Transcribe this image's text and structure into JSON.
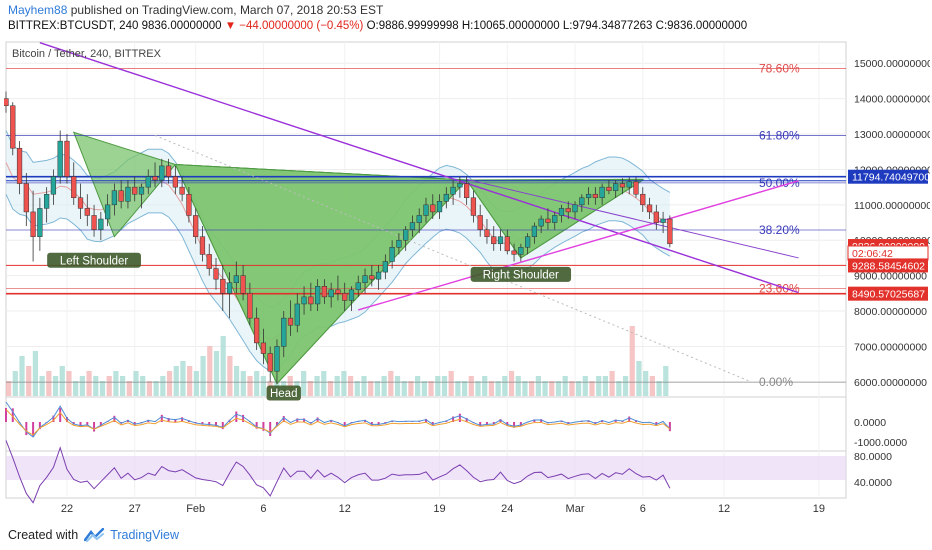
{
  "header": {
    "author": "Mayhem88",
    "published_text": "published on TradingView.com, March 07, 2018 20:53 EST",
    "symbol": "BITTREX:BTCUSDT, 240",
    "price": "9836.00000000",
    "change": "▼ −44.00000000 (−0.45%)",
    "open": "O:9886.99999998",
    "high": "H:10065.00000000",
    "low": "L:9794.34877263",
    "close": "C:9836.00000000"
  },
  "footer": {
    "created_with": "Created with",
    "brand": "TradingView"
  },
  "colors": {
    "candle_up": "#26a69a",
    "candle_down": "#ef5350",
    "fib_red": "#e04848",
    "fib_blue": "#3a3ab8",
    "purple_line": "#9b30d9",
    "magenta_line": "#e040e0",
    "pattern_fill": "#7cc46e",
    "bollinger_fill": "#d8ecf4",
    "badge_blue": "#1e3bbf",
    "badge_red": "#e2302a",
    "rsi_fill": "#ead8f6"
  },
  "chart_data": {
    "type": "candlestick",
    "title": "Bitcoin / Tether, 240, BITTREX",
    "y_axis": {
      "min": 5600,
      "max": 15600,
      "ticks": [
        "15000.00000000",
        "14000.00000000",
        "13000.00000000",
        "12000.00000000",
        "11000.00000000",
        "10000.00000000",
        "9000.00000000",
        "8000.00000000",
        "7000.00000000",
        "6000.00000000"
      ],
      "tick_values": [
        15000,
        14000,
        13000,
        12000,
        11000,
        10000,
        9000,
        8000,
        7000,
        6000
      ]
    },
    "x_axis": {
      "min": 0,
      "max": 62,
      "labels": [
        "22",
        "27",
        "Feb",
        "6",
        "12",
        "19",
        "24",
        "Mar",
        "6",
        "12",
        "19"
      ],
      "label_days": [
        4.5,
        9.5,
        14,
        19,
        25,
        32,
        37,
        42,
        47,
        53,
        60
      ]
    },
    "price_badges": [
      {
        "label": "11794.74049700",
        "value": 11794.74,
        "color": "#1e3bbf"
      },
      {
        "label": "9836.00000000",
        "value": 9836,
        "color": "#e2302a"
      },
      {
        "label": "02:06:42",
        "value": 9640,
        "color": "#ffffff"
      },
      {
        "label": "9288.58454602",
        "value": 9288.58,
        "color": "#e2302a"
      },
      {
        "label": "8490.57025687",
        "value": 8490.57,
        "color": "#e2302a"
      }
    ],
    "fib_levels": [
      {
        "label": "78.60%",
        "value": 14850,
        "color": "#e04848"
      },
      {
        "label": "61.80%",
        "value": 12960,
        "color": "#3a3ab8"
      },
      {
        "label": "50.00%",
        "value": 11620,
        "color": "#3a3ab8"
      },
      {
        "label": "38.20%",
        "value": 10290,
        "color": "#3a3ab8"
      },
      {
        "label": "23.60%",
        "value": 8640,
        "color": "#e04848"
      },
      {
        "label": "0.00%",
        "value": 5990,
        "color": "#888888"
      }
    ],
    "horizontal_lines": [
      {
        "value": 11794.74,
        "color": "#1e3bbf",
        "width": 1.6
      },
      {
        "value": 11680,
        "color": "#1e3bbf",
        "width": 1
      },
      {
        "value": 9288.58,
        "color": "#e2302a",
        "width": 1
      },
      {
        "value": 8490.57,
        "color": "#e2302a",
        "width": 1.6
      }
    ],
    "trend_lines": [
      {
        "name": "purple",
        "x": [
          2.5,
          58.5
        ],
        "y": [
          15580,
          8520
        ],
        "color": "#9b30d9"
      },
      {
        "name": "neckline-lower",
        "x": [
          26,
          58.5
        ],
        "y": [
          8030,
          11680
        ],
        "color": "#e040e0"
      },
      {
        "name": "mid-violet",
        "x": [
          34,
          58.5
        ],
        "y": [
          11720,
          9500
        ],
        "color": "#8844cc"
      },
      {
        "name": "dotted-trend",
        "x": [
          11,
          55
        ],
        "y": [
          12960,
          6000
        ],
        "color": "#bbbbbb"
      }
    ],
    "pattern_annotations": [
      {
        "label": "Left Shoulder",
        "day": 6.5,
        "value": 9420
      },
      {
        "label": "Head",
        "day": 20.5,
        "value": 5670
      },
      {
        "label": "Right Shoulder",
        "day": 38,
        "value": 9020
      }
    ],
    "pattern_polygons": [
      [
        [
          5,
          13050
        ],
        [
          8,
          10100
        ],
        [
          12.5,
          12140
        ]
      ],
      [
        [
          12.5,
          12140
        ],
        [
          20,
          5950
        ],
        [
          34,
          11700
        ]
      ],
      [
        [
          34,
          11700
        ],
        [
          38,
          9500
        ],
        [
          47,
          11700
        ]
      ],
      [
        [
          12.5,
          12140
        ],
        [
          34,
          11700
        ]
      ],
      [
        [
          34,
          11700
        ],
        [
          47,
          11720
        ]
      ]
    ],
    "close_series": [
      {
        "d": 0,
        "o": 14000,
        "h": 14200,
        "l": 13600,
        "c": 13800
      },
      {
        "d": 0.5,
        "o": 13800,
        "h": 13900,
        "l": 12400,
        "c": 12600
      },
      {
        "d": 1,
        "o": 12600,
        "h": 12800,
        "l": 11300,
        "c": 11600
      },
      {
        "d": 1.5,
        "o": 11600,
        "h": 11900,
        "l": 10400,
        "c": 10800
      },
      {
        "d": 2,
        "o": 10800,
        "h": 11400,
        "l": 9400,
        "c": 10100
      },
      {
        "d": 2.5,
        "o": 10100,
        "h": 11200,
        "l": 9700,
        "c": 10900
      },
      {
        "d": 3,
        "o": 10900,
        "h": 11500,
        "l": 10500,
        "c": 11300
      },
      {
        "d": 3.5,
        "o": 11300,
        "h": 12000,
        "l": 11000,
        "c": 11800
      },
      {
        "d": 4,
        "o": 11800,
        "h": 13100,
        "l": 11600,
        "c": 12800
      },
      {
        "d": 4.5,
        "o": 12800,
        "h": 13000,
        "l": 11600,
        "c": 11800
      },
      {
        "d": 5,
        "o": 11800,
        "h": 12200,
        "l": 11000,
        "c": 11200
      },
      {
        "d": 5.5,
        "o": 11200,
        "h": 11600,
        "l": 10600,
        "c": 10900
      },
      {
        "d": 6,
        "o": 10900,
        "h": 11300,
        "l": 10400,
        "c": 10700
      },
      {
        "d": 6.5,
        "o": 10700,
        "h": 11000,
        "l": 10100,
        "c": 10300
      },
      {
        "d": 7,
        "o": 10300,
        "h": 10800,
        "l": 10000,
        "c": 10600
      },
      {
        "d": 7.5,
        "o": 10600,
        "h": 11300,
        "l": 10400,
        "c": 11000
      },
      {
        "d": 8,
        "o": 11000,
        "h": 11600,
        "l": 10700,
        "c": 11400
      },
      {
        "d": 8.5,
        "o": 11400,
        "h": 11700,
        "l": 10900,
        "c": 11100
      },
      {
        "d": 9,
        "o": 11100,
        "h": 11700,
        "l": 10900,
        "c": 11500
      },
      {
        "d": 9.5,
        "o": 11500,
        "h": 11800,
        "l": 11100,
        "c": 11300
      },
      {
        "d": 10,
        "o": 11300,
        "h": 11600,
        "l": 10900,
        "c": 11500
      },
      {
        "d": 10.5,
        "o": 11500,
        "h": 12000,
        "l": 11300,
        "c": 11800
      },
      {
        "d": 11,
        "o": 11800,
        "h": 12200,
        "l": 11500,
        "c": 11700
      },
      {
        "d": 11.5,
        "o": 11700,
        "h": 12300,
        "l": 11500,
        "c": 12100
      },
      {
        "d": 12,
        "o": 12100,
        "h": 12300,
        "l": 11600,
        "c": 11800
      },
      {
        "d": 12.5,
        "o": 11800,
        "h": 12100,
        "l": 11300,
        "c": 11500
      },
      {
        "d": 13,
        "o": 11500,
        "h": 11800,
        "l": 11100,
        "c": 11300
      },
      {
        "d": 13.5,
        "o": 11300,
        "h": 11500,
        "l": 10500,
        "c": 10700
      },
      {
        "d": 14,
        "o": 10700,
        "h": 10900,
        "l": 9900,
        "c": 10100
      },
      {
        "d": 14.5,
        "o": 10100,
        "h": 10400,
        "l": 9400,
        "c": 9600
      },
      {
        "d": 15,
        "o": 9600,
        "h": 9900,
        "l": 9000,
        "c": 9200
      },
      {
        "d": 15.5,
        "o": 9200,
        "h": 9500,
        "l": 8600,
        "c": 8900
      },
      {
        "d": 16,
        "o": 8900,
        "h": 9300,
        "l": 8000,
        "c": 8500
      },
      {
        "d": 16.5,
        "o": 8500,
        "h": 9100,
        "l": 7800,
        "c": 8800
      },
      {
        "d": 17,
        "o": 8800,
        "h": 9400,
        "l": 8500,
        "c": 9000
      },
      {
        "d": 17.5,
        "o": 9000,
        "h": 9300,
        "l": 8300,
        "c": 8500
      },
      {
        "d": 18,
        "o": 8500,
        "h": 8800,
        "l": 7600,
        "c": 7800
      },
      {
        "d": 18.5,
        "o": 7800,
        "h": 8100,
        "l": 6900,
        "c": 7100
      },
      {
        "d": 19,
        "o": 7100,
        "h": 7500,
        "l": 6500,
        "c": 6800
      },
      {
        "d": 19.5,
        "o": 6800,
        "h": 7000,
        "l": 6000,
        "c": 6300
      },
      {
        "d": 20,
        "o": 6300,
        "h": 7200,
        "l": 5950,
        "c": 7000
      },
      {
        "d": 20.5,
        "o": 7000,
        "h": 8000,
        "l": 6700,
        "c": 7800
      },
      {
        "d": 21,
        "o": 7800,
        "h": 8300,
        "l": 7300,
        "c": 7600
      },
      {
        "d": 21.5,
        "o": 7600,
        "h": 8500,
        "l": 7400,
        "c": 8200
      },
      {
        "d": 22,
        "o": 8200,
        "h": 8700,
        "l": 7900,
        "c": 8400
      },
      {
        "d": 22.5,
        "o": 8400,
        "h": 8800,
        "l": 8000,
        "c": 8200
      },
      {
        "d": 23,
        "o": 8200,
        "h": 8900,
        "l": 8000,
        "c": 8700
      },
      {
        "d": 23.5,
        "o": 8700,
        "h": 8900,
        "l": 8200,
        "c": 8400
      },
      {
        "d": 24,
        "o": 8400,
        "h": 8800,
        "l": 8100,
        "c": 8600
      },
      {
        "d": 24.5,
        "o": 8600,
        "h": 9000,
        "l": 8300,
        "c": 8500
      },
      {
        "d": 25,
        "o": 8500,
        "h": 8800,
        "l": 8000,
        "c": 8300
      },
      {
        "d": 25.5,
        "o": 8300,
        "h": 8700,
        "l": 8000,
        "c": 8600
      },
      {
        "d": 26,
        "o": 8600,
        "h": 9000,
        "l": 8400,
        "c": 8800
      },
      {
        "d": 26.5,
        "o": 8800,
        "h": 9200,
        "l": 8500,
        "c": 9000
      },
      {
        "d": 27,
        "o": 9000,
        "h": 9300,
        "l": 8700,
        "c": 8900
      },
      {
        "d": 27.5,
        "o": 8900,
        "h": 9300,
        "l": 8600,
        "c": 9100
      },
      {
        "d": 28,
        "o": 9100,
        "h": 9600,
        "l": 8900,
        "c": 9400
      },
      {
        "d": 28.5,
        "o": 9400,
        "h": 10000,
        "l": 9200,
        "c": 9800
      },
      {
        "d": 29,
        "o": 9800,
        "h": 10200,
        "l": 9600,
        "c": 10000
      },
      {
        "d": 29.5,
        "o": 10000,
        "h": 10400,
        "l": 9700,
        "c": 10300
      },
      {
        "d": 30,
        "o": 10300,
        "h": 10700,
        "l": 10100,
        "c": 10500
      },
      {
        "d": 30.5,
        "o": 10500,
        "h": 10900,
        "l": 10200,
        "c": 10700
      },
      {
        "d": 31,
        "o": 10700,
        "h": 11200,
        "l": 10500,
        "c": 11000
      },
      {
        "d": 31.5,
        "o": 11000,
        "h": 11300,
        "l": 10600,
        "c": 10800
      },
      {
        "d": 32,
        "o": 10800,
        "h": 11300,
        "l": 10600,
        "c": 11100
      },
      {
        "d": 32.5,
        "o": 11100,
        "h": 11500,
        "l": 10900,
        "c": 11300
      },
      {
        "d": 33,
        "o": 11300,
        "h": 11700,
        "l": 11000,
        "c": 11500
      },
      {
        "d": 33.5,
        "o": 11500,
        "h": 11800,
        "l": 11200,
        "c": 11600
      },
      {
        "d": 34,
        "o": 11600,
        "h": 11800,
        "l": 11000,
        "c": 11200
      },
      {
        "d": 34.5,
        "o": 11200,
        "h": 11400,
        "l": 10500,
        "c": 10700
      },
      {
        "d": 35,
        "o": 10700,
        "h": 11000,
        "l": 10100,
        "c": 10300
      },
      {
        "d": 35.5,
        "o": 10300,
        "h": 10600,
        "l": 9900,
        "c": 10100
      },
      {
        "d": 36,
        "o": 10100,
        "h": 10400,
        "l": 9700,
        "c": 9900
      },
      {
        "d": 36.5,
        "o": 9900,
        "h": 10300,
        "l": 9700,
        "c": 10100
      },
      {
        "d": 37,
        "o": 10100,
        "h": 10300,
        "l": 9600,
        "c": 9700
      },
      {
        "d": 37.5,
        "o": 9700,
        "h": 9900,
        "l": 9400,
        "c": 9600
      },
      {
        "d": 38,
        "o": 9600,
        "h": 9900,
        "l": 9400,
        "c": 9800
      },
      {
        "d": 38.5,
        "o": 9800,
        "h": 10200,
        "l": 9600,
        "c": 10100
      },
      {
        "d": 39,
        "o": 10100,
        "h": 10500,
        "l": 9900,
        "c": 10400
      },
      {
        "d": 39.5,
        "o": 10400,
        "h": 10700,
        "l": 10200,
        "c": 10600
      },
      {
        "d": 40,
        "o": 10600,
        "h": 10900,
        "l": 10300,
        "c": 10500
      },
      {
        "d": 40.5,
        "o": 10500,
        "h": 10800,
        "l": 10300,
        "c": 10700
      },
      {
        "d": 41,
        "o": 10700,
        "h": 11000,
        "l": 10500,
        "c": 10900
      },
      {
        "d": 41.5,
        "o": 10900,
        "h": 11100,
        "l": 10600,
        "c": 10800
      },
      {
        "d": 42,
        "o": 10800,
        "h": 11100,
        "l": 10600,
        "c": 11000
      },
      {
        "d": 42.5,
        "o": 11000,
        "h": 11300,
        "l": 10800,
        "c": 11200
      },
      {
        "d": 43,
        "o": 11200,
        "h": 11500,
        "l": 11000,
        "c": 11300
      },
      {
        "d": 43.5,
        "o": 11300,
        "h": 11500,
        "l": 11000,
        "c": 11200
      },
      {
        "d": 44,
        "o": 11200,
        "h": 11600,
        "l": 11000,
        "c": 11500
      },
      {
        "d": 44.5,
        "o": 11500,
        "h": 11700,
        "l": 11300,
        "c": 11400
      },
      {
        "d": 45,
        "o": 11400,
        "h": 11700,
        "l": 11200,
        "c": 11600
      },
      {
        "d": 45.5,
        "o": 11600,
        "h": 11750,
        "l": 11300,
        "c": 11500
      },
      {
        "d": 46,
        "o": 11500,
        "h": 11780,
        "l": 11300,
        "c": 11650
      },
      {
        "d": 46.5,
        "o": 11650,
        "h": 11780,
        "l": 11200,
        "c": 11300
      },
      {
        "d": 47,
        "o": 11300,
        "h": 11500,
        "l": 10800,
        "c": 11000
      },
      {
        "d": 47.5,
        "o": 11000,
        "h": 11200,
        "l": 10600,
        "c": 10800
      },
      {
        "d": 48,
        "o": 10800,
        "h": 11000,
        "l": 10300,
        "c": 10500
      },
      {
        "d": 48.5,
        "o": 10500,
        "h": 10800,
        "l": 10200,
        "c": 10600
      },
      {
        "d": 49,
        "o": 10600,
        "h": 10700,
        "l": 9800,
        "c": 9900
      }
    ]
  },
  "volume_series": [
    3,
    5,
    8,
    6,
    9,
    4,
    5,
    4,
    6,
    5,
    3,
    4,
    5,
    4,
    3,
    4,
    5,
    4,
    3,
    5,
    4,
    3,
    3,
    4,
    5,
    6,
    7,
    6,
    5,
    8,
    10,
    9,
    12,
    8,
    6,
    5,
    4,
    5,
    4,
    3,
    4,
    3,
    4,
    3,
    5,
    3,
    4,
    5,
    3,
    4,
    5,
    4,
    3,
    4,
    3,
    3,
    4,
    5,
    4,
    3,
    3,
    4,
    3,
    3,
    4,
    4,
    5,
    3,
    3,
    4,
    3,
    4,
    3,
    3,
    4,
    5,
    4,
    3,
    3,
    4,
    3,
    3,
    3,
    4,
    3,
    3,
    4,
    3,
    4,
    4,
    5,
    3,
    4,
    14,
    7,
    5,
    4,
    3,
    6
  ],
  "macd": {
    "zero_label": "0.0000",
    "neg_label": "-1000.0000"
  },
  "rsi": {
    "upper_label": "80.0000",
    "lower_label": "40.0000"
  }
}
